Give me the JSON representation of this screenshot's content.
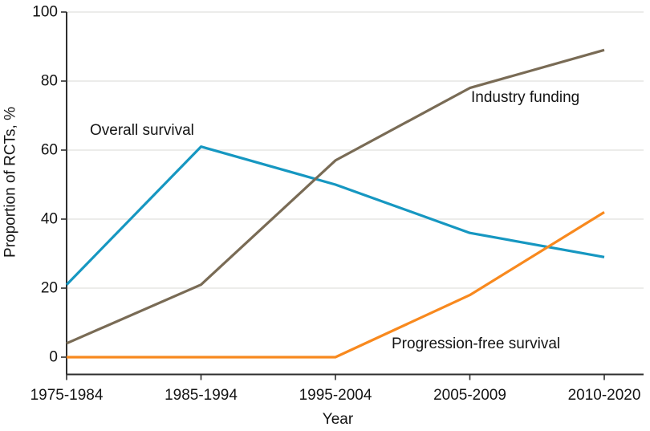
{
  "chart_data": {
    "type": "line",
    "title": "",
    "xlabel": "Year",
    "ylabel": "Proportion of RCTs, %",
    "categories": [
      "1975-1984",
      "1985-1994",
      "1995-2004",
      "2005-2009",
      "2010-2020"
    ],
    "ylim": [
      0,
      100
    ],
    "yticks": [
      0,
      20,
      40,
      60,
      80,
      100
    ],
    "grid": "horizontal gridlines at y ticks, no vertical grid",
    "legend": "inline text labels beside each line (no legend box)",
    "series": [
      {
        "name": "Overall survival",
        "color": "#1697c1",
        "values": [
          21,
          61,
          50,
          36,
          29
        ]
      },
      {
        "name": "Industry funding",
        "color": "#796b55",
        "values": [
          4,
          21,
          57,
          78,
          89
        ]
      },
      {
        "name": "Progression-free survival",
        "color": "#f8891e",
        "values": [
          0,
          0,
          0,
          18,
          42
        ]
      }
    ],
    "colors": {
      "axis": "#2e2e2e",
      "grid": "#e5e5e3",
      "text": "#141414",
      "background": "#ffffff"
    }
  }
}
